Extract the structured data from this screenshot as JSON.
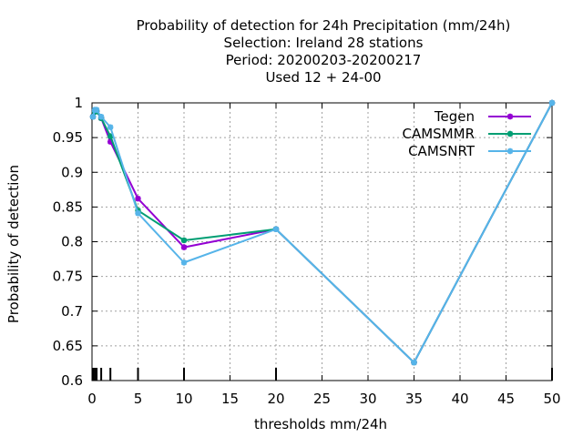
{
  "chart_data": {
    "type": "line",
    "title_lines": [
      "Probability of detection  for 24h Precipitation (mm/24h)",
      "Selection: Ireland     28 stations",
      "Period: 20200203-20200217",
      "Used  12 + 24-00"
    ],
    "xlabel": "thresholds mm/24h",
    "ylabel": "Probability of detection",
    "xlim": [
      0,
      50
    ],
    "ylim": [
      0.6,
      1.0
    ],
    "xticks": [
      0,
      5,
      10,
      15,
      20,
      25,
      30,
      35,
      40,
      45,
      50
    ],
    "xtick_labels": [
      "0",
      "5",
      "10",
      "15",
      "20",
      "25",
      "30",
      "35",
      "40",
      "45",
      "50"
    ],
    "yticks": [
      0.6,
      0.65,
      0.7,
      0.75,
      0.8,
      0.85,
      0.9,
      0.95,
      1.0
    ],
    "ytick_labels": [
      "0.6",
      "0.65",
      "0.7",
      "0.75",
      "0.8",
      "0.85",
      "0.9",
      "0.95",
      "1"
    ],
    "grid": true,
    "legend_position": "top-right",
    "threshold_marks": [
      0.1,
      0.3,
      0.5,
      1,
      2,
      5,
      10,
      20,
      50
    ],
    "series": [
      {
        "name": "Tegen",
        "color": "#9400d3",
        "x": [
          0.1,
          0.3,
          0.5,
          1,
          2,
          5,
          10,
          20,
          35,
          50
        ],
        "y": [
          0.98,
          0.987,
          0.988,
          0.978,
          0.944,
          0.862,
          0.792,
          0.818,
          0.626,
          1.0
        ]
      },
      {
        "name": "CAMSMMR",
        "color": "#009e73",
        "x": [
          0.1,
          0.3,
          0.5,
          1,
          2,
          5,
          10,
          20,
          35,
          50
        ],
        "y": [
          0.98,
          0.987,
          0.988,
          0.978,
          0.952,
          0.845,
          0.802,
          0.818,
          0.626,
          1.0
        ]
      },
      {
        "name": "CAMSNRT",
        "color": "#56b4e9",
        "x": [
          0.1,
          0.3,
          0.5,
          1,
          2,
          5,
          10,
          20,
          35,
          50
        ],
        "y": [
          0.98,
          0.99,
          0.99,
          0.98,
          0.965,
          0.841,
          0.77,
          0.818,
          0.626,
          1.0
        ]
      }
    ]
  }
}
